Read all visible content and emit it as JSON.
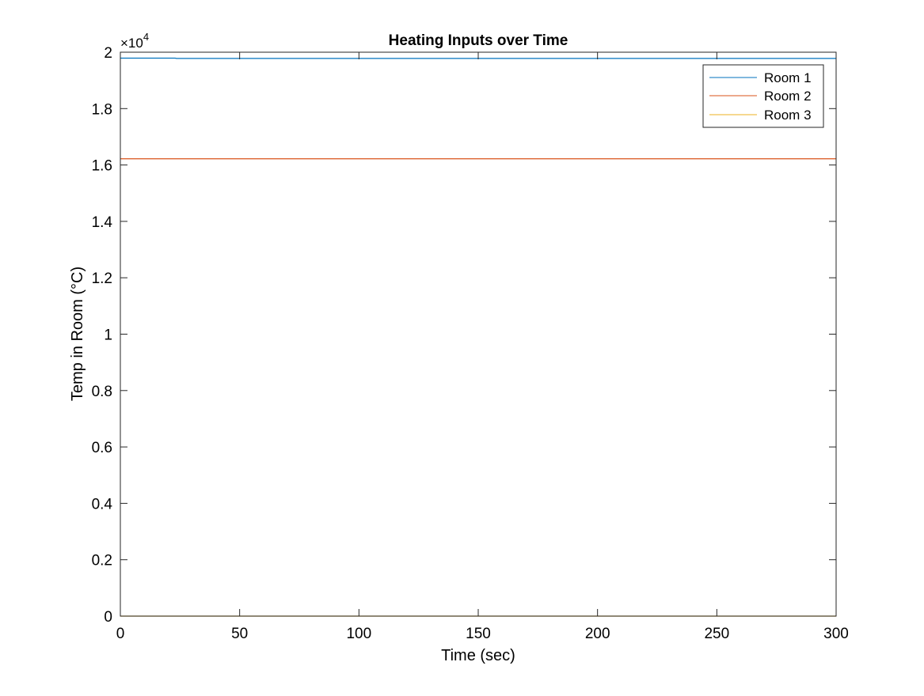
{
  "chart_data": {
    "type": "line",
    "title": "Heating Inputs over Time",
    "xlabel": "Time (sec)",
    "ylabel": "Temp in Room (°C)",
    "exponent_label": "×10",
    "exponent_power": "4",
    "xlim": [
      0,
      300
    ],
    "ylim": [
      0,
      20000
    ],
    "xticks": [
      0,
      50,
      100,
      150,
      200,
      250,
      300
    ],
    "xtick_labels": [
      "0",
      "50",
      "100",
      "150",
      "200",
      "250",
      "300"
    ],
    "yticks": [
      0,
      2000,
      4000,
      6000,
      8000,
      10000,
      12000,
      14000,
      16000,
      18000,
      20000
    ],
    "ytick_labels": [
      "0",
      "0.2",
      "0.4",
      "0.6",
      "0.8",
      "1",
      "1.2",
      "1.4",
      "1.6",
      "1.8",
      "2"
    ],
    "grid": false,
    "legend_position": "top-right",
    "series": [
      {
        "name": "Room 1",
        "color": "#0072BD",
        "x": [
          0,
          23,
          23.5,
          300
        ],
        "y": [
          19790,
          19790,
          19780,
          19780
        ]
      },
      {
        "name": "Room 2",
        "color": "#D95319",
        "x": [
          0,
          300
        ],
        "y": [
          16220,
          16220
        ]
      },
      {
        "name": "Room 3",
        "color": "#EDB120",
        "x": [
          0,
          300
        ],
        "y": [
          0,
          0
        ]
      }
    ]
  }
}
